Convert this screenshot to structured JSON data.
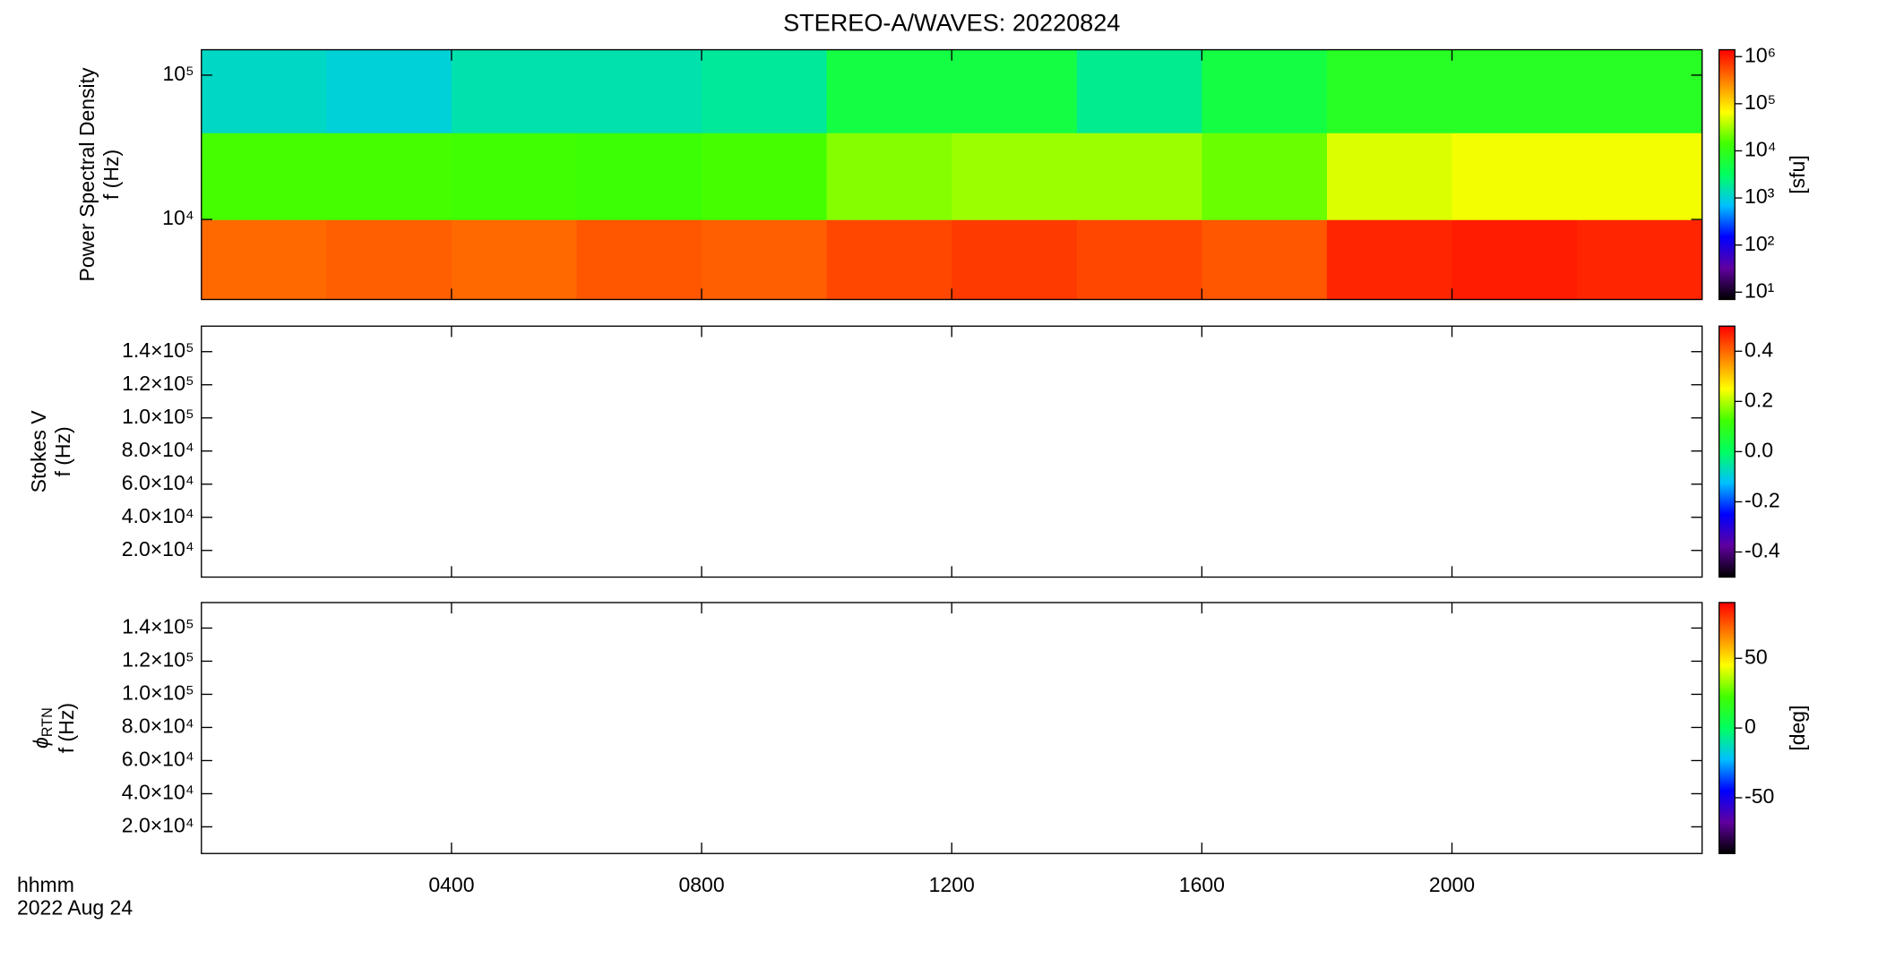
{
  "chart_data": [
    {
      "type": "heatmap",
      "title": "STEREO-A/WAVES: 20220824",
      "ylabel": "Power Spectral Density",
      "ylabel2": "f (Hz)",
      "ylog": true,
      "ylim": [
        2790,
        150000
      ],
      "yticks": [
        {
          "value": 10000,
          "label": "10⁴"
        },
        {
          "value": 100000,
          "label": "10⁵"
        }
      ],
      "xlim": [
        0,
        24
      ],
      "xticks": [
        4,
        8,
        12,
        16,
        20
      ],
      "x": [
        0,
        2,
        4,
        6,
        8,
        10,
        12,
        14,
        16,
        18,
        20,
        22,
        24
      ],
      "y": [
        2790,
        10000,
        40000,
        150000
      ],
      "z": [
        [
          400000,
          450000,
          400000,
          500000,
          450000,
          600000,
          700000,
          600000,
          500000,
          900000,
          1000000,
          900000
        ],
        [
          15000,
          15000,
          14000,
          13000,
          15000,
          25000,
          30000,
          30000,
          20000,
          50000,
          60000,
          60000
        ],
        [
          1200,
          1000,
          1500,
          1500,
          1800,
          5000,
          5000,
          2000,
          5000,
          8000,
          8000,
          8000
        ]
      ],
      "colormap": [
        "#000000",
        "#6000a0",
        "#0000ff",
        "#00c0ff",
        "#00ff60",
        "#40ff00",
        "#ffff00",
        "#ff8000",
        "#ff0000"
      ],
      "clog": true,
      "clim": [
        7,
        1400000
      ],
      "cticks": [
        {
          "value": 10,
          "label": "10¹"
        },
        {
          "value": 100,
          "label": "10²"
        },
        {
          "value": 1000,
          "label": "10³"
        },
        {
          "value": 10000,
          "label": "10⁴"
        },
        {
          "value": 100000,
          "label": "10⁵"
        },
        {
          "value": 1000000,
          "label": "10⁶"
        }
      ],
      "clabel": "[sfu]"
    },
    {
      "type": "heatmap",
      "ylabel": "Stokes V",
      "ylabel2": "f (Hz)",
      "ylim": [
        3900,
        155400
      ],
      "yticks": [
        {
          "value": 20000,
          "label": "2.0×10⁴"
        },
        {
          "value": 40000,
          "label": "4.0×10⁴"
        },
        {
          "value": 60000,
          "label": "6.0×10⁴"
        },
        {
          "value": 80000,
          "label": "8.0×10⁴"
        },
        {
          "value": 100000,
          "label": "1.0×10⁵"
        },
        {
          "value": 120000,
          "label": "1.2×10⁵"
        },
        {
          "value": 140000,
          "label": "1.4×10⁵"
        }
      ],
      "xlim": [
        0,
        24
      ],
      "xticks": [
        4,
        8,
        12,
        16,
        20
      ],
      "colormap": [
        "#000000",
        "#6000a0",
        "#0000ff",
        "#00c0ff",
        "#00ff60",
        "#40ff00",
        "#ffff00",
        "#ff8000",
        "#ff0000"
      ],
      "clim": [
        -0.5,
        0.5
      ],
      "cticks": [
        -0.4,
        -0.2,
        {
          "value": 0,
          "label": "0.0"
        },
        0.2,
        0.4
      ]
    },
    {
      "type": "heatmap",
      "ylabel": "ϕ",
      "ylabel_sub": "RTN",
      "ylabel2": "f (Hz)",
      "ylim": [
        3900,
        155400
      ],
      "yticks": [
        {
          "value": 20000,
          "label": "2.0×10⁴"
        },
        {
          "value": 40000,
          "label": "4.0×10⁴"
        },
        {
          "value": 60000,
          "label": "6.0×10⁴"
        },
        {
          "value": 80000,
          "label": "8.0×10⁴"
        },
        {
          "value": 100000,
          "label": "1.0×10⁵"
        },
        {
          "value": 120000,
          "label": "1.2×10⁵"
        },
        {
          "value": 140000,
          "label": "1.4×10⁵"
        }
      ],
      "xlim": [
        0,
        24
      ],
      "xticks": [
        {
          "value": 4,
          "label": "0400"
        },
        {
          "value": 8,
          "label": "0800"
        },
        {
          "value": 12,
          "label": "1200"
        },
        {
          "value": 16,
          "label": "1600"
        },
        {
          "value": 20,
          "label": "2000"
        }
      ],
      "xlabel": "hhmm",
      "date": "2022 Aug 24",
      "colormap": [
        "#000000",
        "#6000a0",
        "#0000ff",
        "#00c0ff",
        "#00ff60",
        "#40ff00",
        "#ffff00",
        "#ff8000",
        "#ff0000"
      ],
      "clim": [
        -90,
        90
      ],
      "cticks": [
        -50,
        0,
        50
      ],
      "clabel": "[deg]"
    }
  ]
}
